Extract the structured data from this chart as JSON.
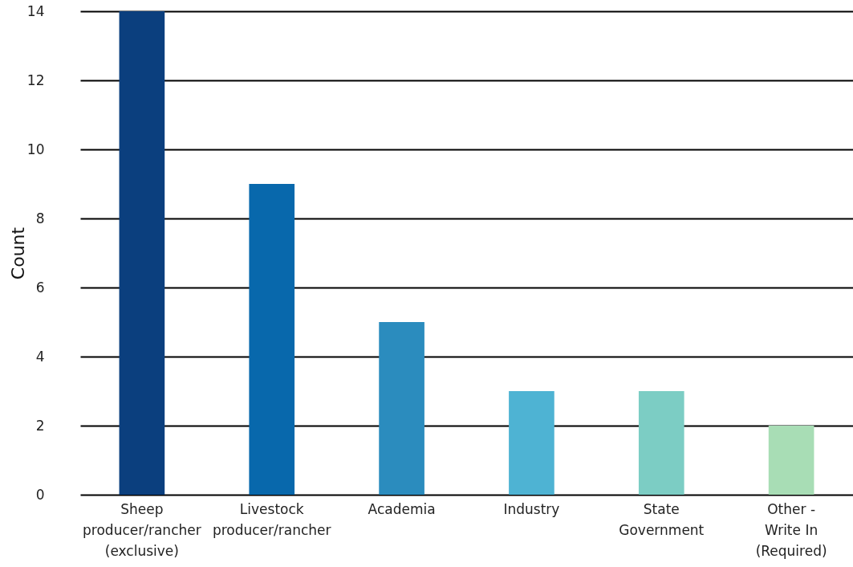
{
  "chart_data": {
    "type": "bar",
    "ylabel": "Count",
    "categories": [
      "Sheep producer/rancher (exclusive)",
      "Livestock producer/rancher",
      "Academia",
      "Industry",
      "State Government",
      "Other - Write In (Required)"
    ],
    "values": [
      14,
      9,
      5,
      3,
      3,
      2
    ],
    "colors": [
      "#0b3f7e",
      "#0868ac",
      "#2b8cbe",
      "#4eb3d3",
      "#7ccdc4",
      "#a8ddb5"
    ],
    "ylim": [
      0,
      14
    ],
    "yticks": [
      0,
      2,
      4,
      6,
      8,
      10,
      12,
      14
    ],
    "grid": "y"
  }
}
